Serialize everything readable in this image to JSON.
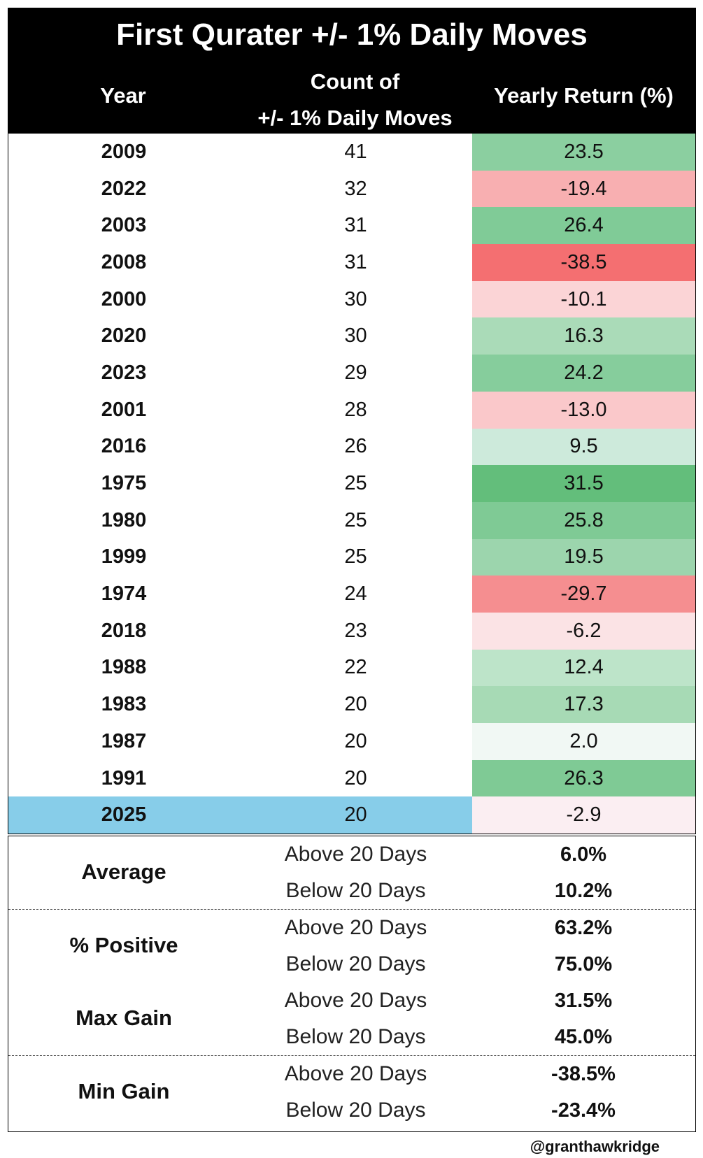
{
  "title": "First Qurater +/- 1% Daily Moves",
  "headers": {
    "year": "Year",
    "count_line1": "Count of",
    "count_line2": "+/- 1% Daily Moves",
    "return": "Yearly Return (%)"
  },
  "rows": [
    {
      "year": "2009",
      "count": "41",
      "return": "23.5",
      "color": "#8bcfa0"
    },
    {
      "year": "2022",
      "count": "32",
      "return": "-19.4",
      "color": "#f8afb1"
    },
    {
      "year": "2003",
      "count": "31",
      "return": "26.4",
      "color": "#80cb97"
    },
    {
      "year": "2008",
      "count": "31",
      "return": "-38.5",
      "color": "#f46f71"
    },
    {
      "year": "2000",
      "count": "30",
      "return": "-10.1",
      "color": "#fbd4d6"
    },
    {
      "year": "2020",
      "count": "30",
      "return": "16.3",
      "color": "#aadbb8"
    },
    {
      "year": "2023",
      "count": "29",
      "return": "24.2",
      "color": "#86cd9c"
    },
    {
      "year": "2001",
      "count": "28",
      "return": "-13.0",
      "color": "#fac8ca"
    },
    {
      "year": "2016",
      "count": "26",
      "return": "9.5",
      "color": "#cdeadb"
    },
    {
      "year": "1975",
      "count": "25",
      "return": "31.5",
      "color": "#63be7b"
    },
    {
      "year": "1980",
      "count": "25",
      "return": "25.8",
      "color": "#7fca95"
    },
    {
      "year": "1999",
      "count": "25",
      "return": "19.5",
      "color": "#9cd5ad"
    },
    {
      "year": "1974",
      "count": "24",
      "return": "-29.7",
      "color": "#f58e90"
    },
    {
      "year": "2018",
      "count": "23",
      "return": "-6.2",
      "color": "#fbe3e5"
    },
    {
      "year": "1988",
      "count": "22",
      "return": "12.4",
      "color": "#bde4c9"
    },
    {
      "year": "1983",
      "count": "20",
      "return": "17.3",
      "color": "#a7dab5"
    },
    {
      "year": "1987",
      "count": "20",
      "return": "2.0",
      "color": "#f1f8f4"
    },
    {
      "year": "1991",
      "count": "20",
      "return": "26.3",
      "color": "#7fca95"
    },
    {
      "year": "2025",
      "count": "20",
      "return": "-2.9",
      "color": "#fbeef2",
      "highlight": true
    }
  ],
  "summary": [
    {
      "label": "Average",
      "above_label": "Above 20 Days",
      "above_value": "6.0%",
      "below_label": "Below 20 Days",
      "below_value": "10.2%"
    },
    {
      "label": "% Positive",
      "above_label": "Above 20 Days",
      "above_value": "63.2%",
      "below_label": "Below 20 Days",
      "below_value": "75.0%"
    },
    {
      "label": "Max Gain",
      "above_label": "Above 20 Days",
      "above_value": "31.5%",
      "below_label": "Below 20 Days",
      "below_value": "45.0%"
    },
    {
      "label": "Min Gain",
      "above_label": "Above 20 Days",
      "above_value": "-38.5%",
      "below_label": "Below 20 Days",
      "below_value": "-23.4%"
    }
  ],
  "credit": "@granthawkridge"
}
